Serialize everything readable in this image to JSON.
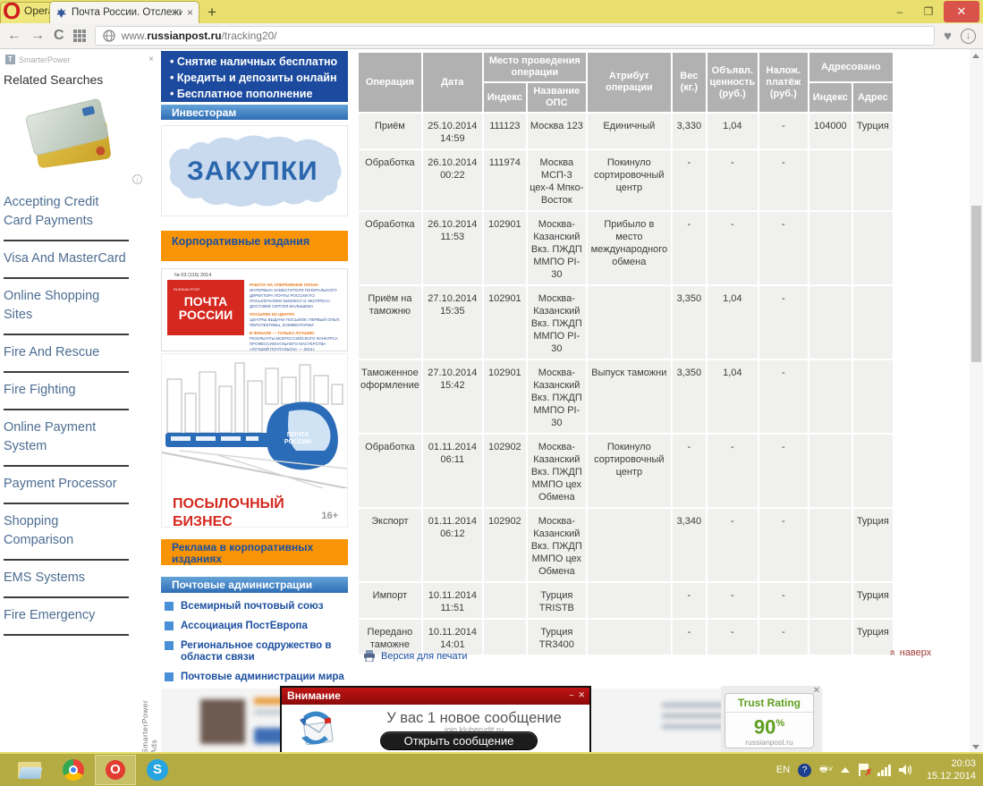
{
  "browser": {
    "opera_button": "Opera",
    "tab_title": "Почта России. Отслежив",
    "tab_close": "×",
    "new_tab": "+",
    "minimize": "–",
    "url_prefix": "www.",
    "url_domain": "russianpost.ru",
    "url_path": "/tracking20/"
  },
  "ad_sidebar": {
    "provider": "SmarterPower",
    "close": "×",
    "heading": "Related Searches",
    "items": [
      "Accepting Credit Card Payments",
      "Visa And MasterCard",
      "Online Shopping Sites",
      "Fire And Rescue",
      "Fire Fighting",
      "Online Payment System",
      "Payment Processor",
      "Shopping Comparison",
      "EMS Systems",
      "Fire Emergency"
    ],
    "ads_label": "SmarterPower Ads"
  },
  "promo": {
    "bank_bullets": [
      "Снятие наличных бесплатно",
      "Кредиты и депозиты онлайн",
      "Бесплатное пополнение"
    ],
    "investors": "Инвесторам",
    "zakupki": "ЗАКУПКИ",
    "corporate": "Корпоративные издания",
    "magazine": {
      "issue": "№ 03 (116) 2014",
      "brand_small": "RUSSIAN POST",
      "title_line1": "ПОЧТА",
      "title_line2": "РОССИИ",
      "articles": [
        {
          "head": "РАБОТА НА ОПЕРЕЖЕНИЕ ПЛАНА",
          "body": "ИНТЕРВЬЮ ЗАМЕСТИТЕЛЯ ГЕНЕРАЛЬНОГО ДИРЕКТОРА ПОЧТЫ РОССИИ ПО ПОСЫЛОЧНОМУ БИЗНЕСУ И ЭКСПРЕСС-ДОСТАВКЕ СЕРГЕЯ МАЛЫШЕВА"
        },
        {
          "head": "ПОСЫЛКИ ИЗ ЦЕНТРА",
          "body": "ЦЕНТРЫ ВЫДАЧИ ПОСЫЛОК: ПЕРВЫЙ ОПЫТ, ПЕРСПЕКТИВЫ, КОММЕНТАРИИ"
        },
        {
          "head": "В ФИНАЛЕ — ТОЛЬКО ЛУЧШИЕ!",
          "body": "РЕЗУЛЬТАТЫ ВСЕРОССИЙСКОГО КОНКУРСА ПРОФЕССИОНАЛЬНОГО МАСТЕРСТВА «ЛУЧШИЙ ПОЧТАЛЬОН» — 2014»"
        }
      ]
    },
    "train_title_line1": "ПОСЫЛОЧНЫЙ",
    "train_title_line2": "БИЗНЕС",
    "train_brand": "ПОЧТА РОССИИ",
    "age_mark": "16+",
    "advert": "Реклама в корпоративных изданиях",
    "postal_admins": "Почтовые администрации",
    "admin_links": [
      "Всемирный почтовый союз",
      "Ассоциация ПостЕвропа",
      "Региональное содружество в области связи",
      "Почтовые администрации мира"
    ]
  },
  "table": {
    "headers": {
      "operation": "Операция",
      "date": "Дата",
      "place": "Место проведения операции",
      "attribute": "Атрибут операции",
      "weight": "Вес (кг.)",
      "declared_value": "Объявл. ценность (руб.)",
      "cod": "Налож. платёж (руб.)",
      "addressed": "Адресовано",
      "index": "Индекс",
      "ops_name": "Название ОПС",
      "addr_index": "Индекс",
      "addr": "Адрес"
    },
    "rows": [
      [
        "Приём",
        "25.10.2014 14:59",
        "111123",
        "Москва 123",
        "Единичный",
        "3,330",
        "1,04",
        "-",
        "104000",
        "Турция"
      ],
      [
        "Обработка",
        "26.10.2014 00:22",
        "111974",
        "Москва МСП-3 цех-4 Мпко-Восток",
        "Покинуло сортировочный центр",
        "-",
        "-",
        "-",
        "",
        ""
      ],
      [
        "Обработка",
        "26.10.2014 11:53",
        "102901",
        "Москва-Казанский Вкз. ПЖДП ММПО PI-30",
        "Прибыло в место международного обмена",
        "-",
        "-",
        "-",
        "",
        ""
      ],
      [
        "Приём на таможню",
        "27.10.2014 15:35",
        "102901",
        "Москва-Казанский Вкз. ПЖДП ММПО PI-30",
        "",
        "3,350",
        "1,04",
        "-",
        "",
        ""
      ],
      [
        "Таможенное оформление",
        "27.10.2014 15:42",
        "102901",
        "Москва-Казанский Вкз. ПЖДП ММПО PI-30",
        "Выпуск таможни",
        "3,350",
        "1,04",
        "-",
        "",
        ""
      ],
      [
        "Обработка",
        "01.11.2014 06:11",
        "102902",
        "Москва-Казанский Вкз. ПЖДП ММПО цех Обмена",
        "Покинуло сортировочный центр",
        "-",
        "-",
        "-",
        "",
        ""
      ],
      [
        "Экспорт",
        "01.11.2014 06:12",
        "102902",
        "Москва-Казанский Вкз. ПЖДП ММПО цех Обмена",
        "",
        "3,340",
        "-",
        "-",
        "",
        "Турция"
      ],
      [
        "Импорт",
        "10.11.2014 11:51",
        "",
        "Турция TRISTB",
        "",
        "-",
        "-",
        "-",
        "",
        "Турция"
      ],
      [
        "Передано таможне",
        "10.11.2014 14:01",
        "",
        "Турция TR3400",
        "",
        "-",
        "-",
        "-",
        "",
        "Турция"
      ]
    ]
  },
  "below_table": {
    "print_label": "Версия для печати",
    "top_label": "наверх"
  },
  "popup": {
    "title": "Внимание",
    "message": "У вас 1 новое сообщение",
    "watermark": "join.kluberudit.ru",
    "button": "Открыть сообщение"
  },
  "trust": {
    "title": "Trust Rating",
    "value": "90",
    "unit": "%",
    "site": "russianpost.ru"
  },
  "taskbar": {
    "lang": "EN",
    "time": "20:03",
    "date": "15.12.2014"
  },
  "colors": {
    "accent_blue": "#1b4fa0",
    "orange": "#f89406",
    "red": "#d5281e",
    "taskbar_olive": "#b4ab42",
    "titlebar_yellow": "#e8df6e",
    "trust_green": "#5f9e1f"
  }
}
